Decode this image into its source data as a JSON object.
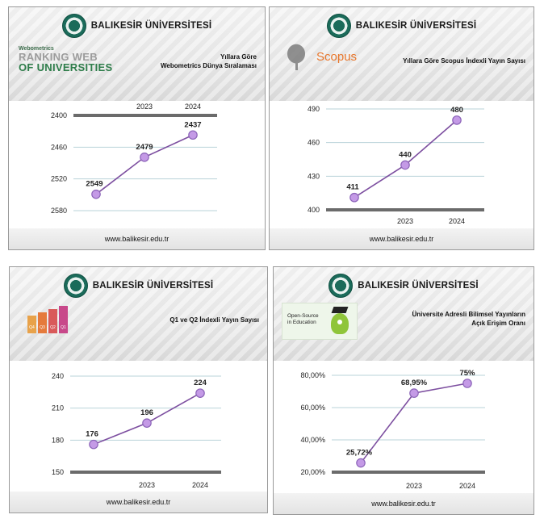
{
  "brand": "BALIKESİR ÜNİVERSİTESİ",
  "footer_url": "www.balikesir.edu.tr",
  "colors": {
    "line": "#7d4fa0",
    "marker": "#c49ae6",
    "gridline": "#b9d3da",
    "axis": "#6b6b6b"
  },
  "logos": {
    "webometrics": {
      "small": "Webometrics",
      "line1": "RANKING WEB",
      "line2": "OF UNIVERSITIES"
    },
    "scopus": "Scopus",
    "open_source": {
      "line1": "Open-Source",
      "line2": "in Education"
    },
    "quartiles": [
      "Q4",
      "Q3",
      "Q2",
      "Q1"
    ]
  },
  "panels": [
    {
      "subtitle_line1": "Yıllara Göre",
      "subtitle_line2": "Webometrics Dünya Sıralaması"
    },
    {
      "subtitle_line1": "Yıllara Göre Scopus İndexli Yayın Sayısı",
      "subtitle_line2": ""
    },
    {
      "subtitle_line1": "Q1 ve Q2 İndexli Yayın Sayısı",
      "subtitle_line2": ""
    },
    {
      "subtitle_line1": "Üniversite Adresli Bilimsel Yayınların",
      "subtitle_line2": "Açık Erişim Oranı"
    }
  ],
  "chart_data": [
    {
      "type": "line",
      "title": "Yıllara Göre Webometrics Dünya Sıralaması",
      "x": [
        "",
        "2023",
        "2024"
      ],
      "series": [
        {
          "values": [
            2549,
            2479,
            2437
          ],
          "labels": [
            "2549",
            "2479",
            "2437"
          ]
        }
      ],
      "yticks": [
        "2400",
        "2460",
        "2520",
        "2580"
      ],
      "ylim": [
        2400,
        2580
      ],
      "y_inverted": true,
      "x_axis_position": "top",
      "grid": true
    },
    {
      "type": "line",
      "title": "Yıllara Göre Scopus İndexli Yayın Sayısı",
      "x": [
        "",
        "2023",
        "2024"
      ],
      "series": [
        {
          "values": [
            411,
            440,
            480
          ],
          "labels": [
            "411",
            "440",
            "480"
          ]
        }
      ],
      "yticks": [
        "400",
        "430",
        "460",
        "490"
      ],
      "ylim": [
        400,
        490
      ],
      "x_axis_position": "bottom",
      "grid": true
    },
    {
      "type": "line",
      "title": "Q1 ve Q2 İndexli Yayın Sayısı",
      "x": [
        "",
        "2023",
        "2024"
      ],
      "series": [
        {
          "values": [
            176,
            196,
            224
          ],
          "labels": [
            "176",
            "196",
            "224"
          ]
        }
      ],
      "yticks": [
        "150",
        "180",
        "210",
        "240"
      ],
      "ylim": [
        150,
        240
      ],
      "x_axis_position": "bottom",
      "grid": true
    },
    {
      "type": "line",
      "title": "Üniversite Adresli Bilimsel Yayınların Açık Erişim Oranı",
      "x": [
        "",
        "2023",
        "2024"
      ],
      "series": [
        {
          "values": [
            25.72,
            68.95,
            75
          ],
          "labels": [
            "25,72%",
            "68,95%",
            "75%"
          ]
        }
      ],
      "yticks": [
        "20,00%",
        "40,00%",
        "60,00%",
        "80,00%"
      ],
      "ylim": [
        20,
        80
      ],
      "x_axis_position": "bottom",
      "grid": true
    }
  ]
}
